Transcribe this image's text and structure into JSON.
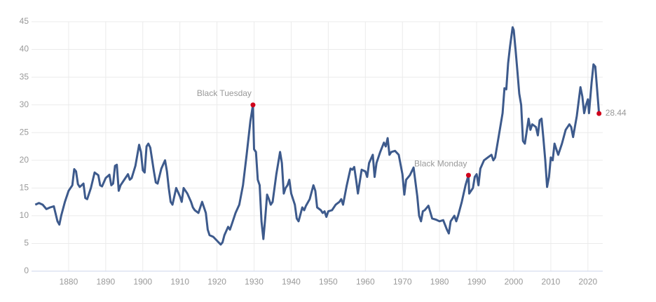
{
  "chart_data": {
    "type": "line",
    "x": [
      1871,
      1872,
      1873,
      1874,
      1875,
      1876,
      1877,
      1877.5,
      1878,
      1879,
      1880,
      1881,
      1881.5,
      1882,
      1882.5,
      1883,
      1884,
      1884.5,
      1885,
      1886,
      1887,
      1888,
      1888.5,
      1889,
      1890,
      1891,
      1891.5,
      1892,
      1892.5,
      1893,
      1893.5,
      1894,
      1895,
      1896,
      1896.5,
      1897,
      1898,
      1899,
      1899.5,
      1900,
      1900.5,
      1901,
      1901.5,
      1902,
      1903,
      1903.5,
      1904,
      1905,
      1906,
      1906.5,
      1907,
      1907.5,
      1908,
      1909,
      1910,
      1910.5,
      1911,
      1912,
      1913,
      1913.5,
      1914,
      1915,
      1916,
      1917,
      1917.5,
      1918,
      1919,
      1920,
      1921,
      1921.5,
      1922,
      1923,
      1923.5,
      1924,
      1925,
      1926,
      1927,
      1928,
      1929,
      1929.7,
      1930,
      1930.5,
      1931,
      1931.5,
      1932,
      1932.5,
      1933,
      1933.5,
      1934,
      1934.5,
      1935,
      1936,
      1937,
      1937.5,
      1938,
      1938.5,
      1939,
      1939.5,
      1940,
      1941,
      1941.5,
      1942,
      1943,
      1943.5,
      1944,
      1945,
      1946,
      1946.5,
      1947,
      1948,
      1948.5,
      1949,
      1949.5,
      1950,
      1951,
      1952,
      1953,
      1953.5,
      1954,
      1955,
      1956,
      1956.5,
      1957,
      1957.5,
      1958,
      1959,
      1960,
      1960.5,
      1961,
      1962,
      1962.5,
      1963,
      1964,
      1965,
      1965.5,
      1966,
      1966.5,
      1967,
      1968,
      1969,
      1970,
      1970.5,
      1971,
      1972,
      1973,
      1974,
      1974.5,
      1975,
      1975.5,
      1976,
      1977,
      1978,
      1979,
      1980,
      1981,
      1982,
      1982.5,
      1983,
      1984,
      1984.5,
      1985,
      1986,
      1987,
      1987.8,
      1988,
      1989,
      1989.5,
      1990,
      1990.5,
      1991,
      1992,
      1993,
      1994,
      1994.5,
      1995,
      1996,
      1997,
      1997.5,
      1998,
      1998.5,
      1999,
      1999.7,
      2000,
      2000.5,
      2001,
      2001.5,
      2002,
      2002.5,
      2003,
      2004,
      2004.5,
      2005,
      2006,
      2006.5,
      2007,
      2007.5,
      2008,
      2008.5,
      2009,
      2009.5,
      2010,
      2010.5,
      2011,
      2011.5,
      2012,
      2013,
      2014,
      2015,
      2015.5,
      2016,
      2017,
      2018,
      2018.5,
      2019,
      2019.5,
      2020,
      2020.3,
      2021,
      2021.5,
      2022,
      2023
    ],
    "series": [
      {
        "color": "#3d5a8c",
        "values": [
          12.0,
          12.3,
          12.0,
          11.2,
          11.5,
          11.7,
          9.0,
          8.4,
          10.0,
          12.5,
          14.5,
          15.5,
          18.4,
          18.0,
          15.7,
          15.2,
          15.8,
          13.2,
          13.0,
          15.0,
          17.8,
          17.3,
          15.5,
          15.3,
          16.8,
          17.4,
          15.5,
          15.8,
          19.0,
          19.2,
          14.5,
          15.5,
          16.5,
          17.5,
          16.5,
          16.8,
          19.0,
          22.8,
          21.5,
          18.2,
          17.8,
          22.5,
          23.0,
          22.3,
          18.0,
          16.0,
          15.8,
          18.5,
          20.0,
          18.0,
          15.0,
          12.5,
          12.0,
          15.0,
          13.5,
          12.5,
          15.0,
          14.0,
          12.5,
          11.5,
          11.0,
          10.5,
          12.5,
          10.5,
          7.5,
          6.5,
          6.2,
          5.5,
          4.8,
          5.2,
          6.5,
          8.0,
          7.5,
          8.5,
          10.5,
          12.0,
          15.5,
          21.0,
          27.0,
          29.99,
          22.0,
          21.5,
          16.5,
          15.5,
          9.0,
          5.8,
          9.5,
          13.8,
          13.0,
          12.0,
          12.5,
          17.5,
          21.5,
          19.5,
          14.0,
          15.0,
          15.5,
          16.5,
          14.0,
          12.0,
          9.5,
          9.0,
          11.5,
          11.0,
          11.8,
          13.0,
          15.5,
          14.5,
          11.5,
          11.0,
          10.5,
          10.8,
          9.8,
          10.8,
          11.0,
          12.0,
          12.5,
          13.0,
          12.0,
          15.5,
          18.5,
          18.3,
          18.8,
          16.5,
          14.0,
          18.3,
          18.0,
          17.0,
          19.5,
          21.0,
          17.0,
          19.5,
          21.5,
          23.2,
          22.5,
          24.0,
          21.0,
          21.5,
          21.7,
          21.0,
          17.5,
          13.8,
          16.5,
          17.3,
          18.7,
          13.5,
          10.0,
          9.0,
          10.8,
          11.0,
          11.8,
          9.5,
          9.3,
          9.0,
          9.2,
          7.5,
          6.8,
          9.0,
          10.0,
          9.0,
          10.0,
          12.5,
          15.5,
          17.3,
          14.0,
          15.0,
          17.0,
          17.5,
          15.5,
          18.5,
          20.0,
          20.5,
          21.0,
          20.0,
          20.5,
          24.5,
          28.5,
          33.0,
          32.8,
          37.5,
          40.5,
          44.0,
          43.5,
          40.0,
          36.0,
          32.0,
          30.0,
          23.5,
          23.0,
          27.5,
          25.5,
          26.5,
          26.0,
          24.5,
          27.2,
          27.5,
          24.0,
          20.0,
          15.2,
          17.0,
          20.5,
          20.0,
          23.0,
          22.0,
          21.0,
          23.0,
          25.5,
          26.5,
          26.0,
          24.2,
          28.0,
          33.2,
          31.5,
          28.5,
          30.0,
          31.0,
          28.5,
          34.0,
          37.3,
          36.9,
          28.44
        ]
      }
    ],
    "annotations": [
      {
        "label": "Black Tuesday",
        "x": 1929.7,
        "y": 29.99
      },
      {
        "label": "Black Monday",
        "x": 1987.8,
        "y": 17.3
      }
    ],
    "marker_color": "#d0021b",
    "xlim": [
      1870,
      2024
    ],
    "xticks": [
      1880,
      1890,
      1900,
      1910,
      1920,
      1930,
      1940,
      1950,
      1960,
      1970,
      1980,
      1990,
      2000,
      2010,
      2020
    ],
    "ylim": [
      0,
      45
    ],
    "yticks": [
      0,
      5,
      10,
      15,
      20,
      25,
      30,
      35,
      40,
      45
    ],
    "grid": true
  }
}
